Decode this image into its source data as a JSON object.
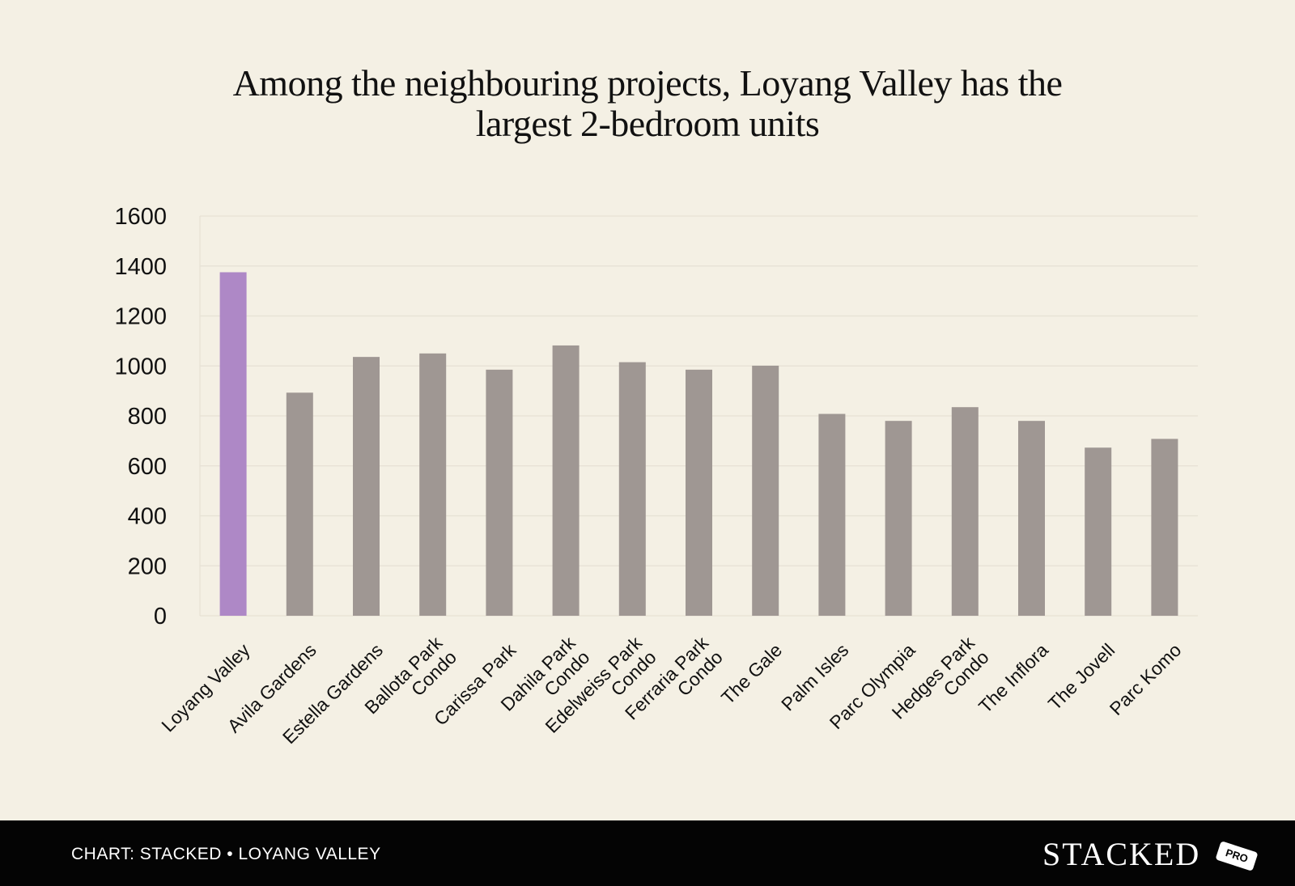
{
  "chart_data": {
    "type": "bar",
    "title": "Among the neighbouring projects, Loyang Valley has the largest 2-bedroom units",
    "title_lines": [
      "Among the neighbouring projects, Loyang Valley has the",
      "largest 2-bedroom units"
    ],
    "xlabel": "",
    "ylabel": "",
    "ylim": [
      0,
      1600
    ],
    "yticks": [
      0,
      200,
      400,
      600,
      800,
      1000,
      1200,
      1400,
      1600
    ],
    "grid": true,
    "categories": [
      "Loyang Valley",
      "Avila Gardens",
      "Estella Gardens",
      "Ballota Park Condo",
      "Carissa Park",
      "Dahila Park Condo",
      "Edelweiss Park Condo",
      "Ferraria Park Condo",
      "The Gale",
      "Palm Isles",
      "Parc Olympia",
      "Hedges Park Condo",
      "The Inflora",
      "The Jovell",
      "Parc Komo"
    ],
    "category_label_lines": [
      [
        "Loyang Valley"
      ],
      [
        "Avila Gardens"
      ],
      [
        "Estella Gardens"
      ],
      [
        "Ballota Park",
        "Condo"
      ],
      [
        "Carissa Park"
      ],
      [
        "Dahila Park",
        "Condo"
      ],
      [
        "Edelweiss Park",
        "Condo"
      ],
      [
        "Ferraria Park",
        "Condo"
      ],
      [
        "The Gale"
      ],
      [
        "Palm Isles"
      ],
      [
        "Parc Olympia"
      ],
      [
        "Hedges Park",
        "Condo"
      ],
      [
        "The Inflora"
      ],
      [
        "The Jovell"
      ],
      [
        "Parc Komo"
      ]
    ],
    "values": [
      1375,
      893,
      1036,
      1050,
      985,
      1082,
      1015,
      985,
      1001,
      808,
      780,
      835,
      780,
      673,
      708
    ],
    "highlight_index": 0,
    "colors": {
      "highlight": "#ae88c6",
      "default": "#9f9793",
      "grid": "#e6e1d4",
      "tick_text": "#111111"
    }
  },
  "footer": {
    "credit": "CHART: STACKED • LOYANG VALLEY",
    "logo_word": "STACKED",
    "logo_badge": "PRO"
  }
}
